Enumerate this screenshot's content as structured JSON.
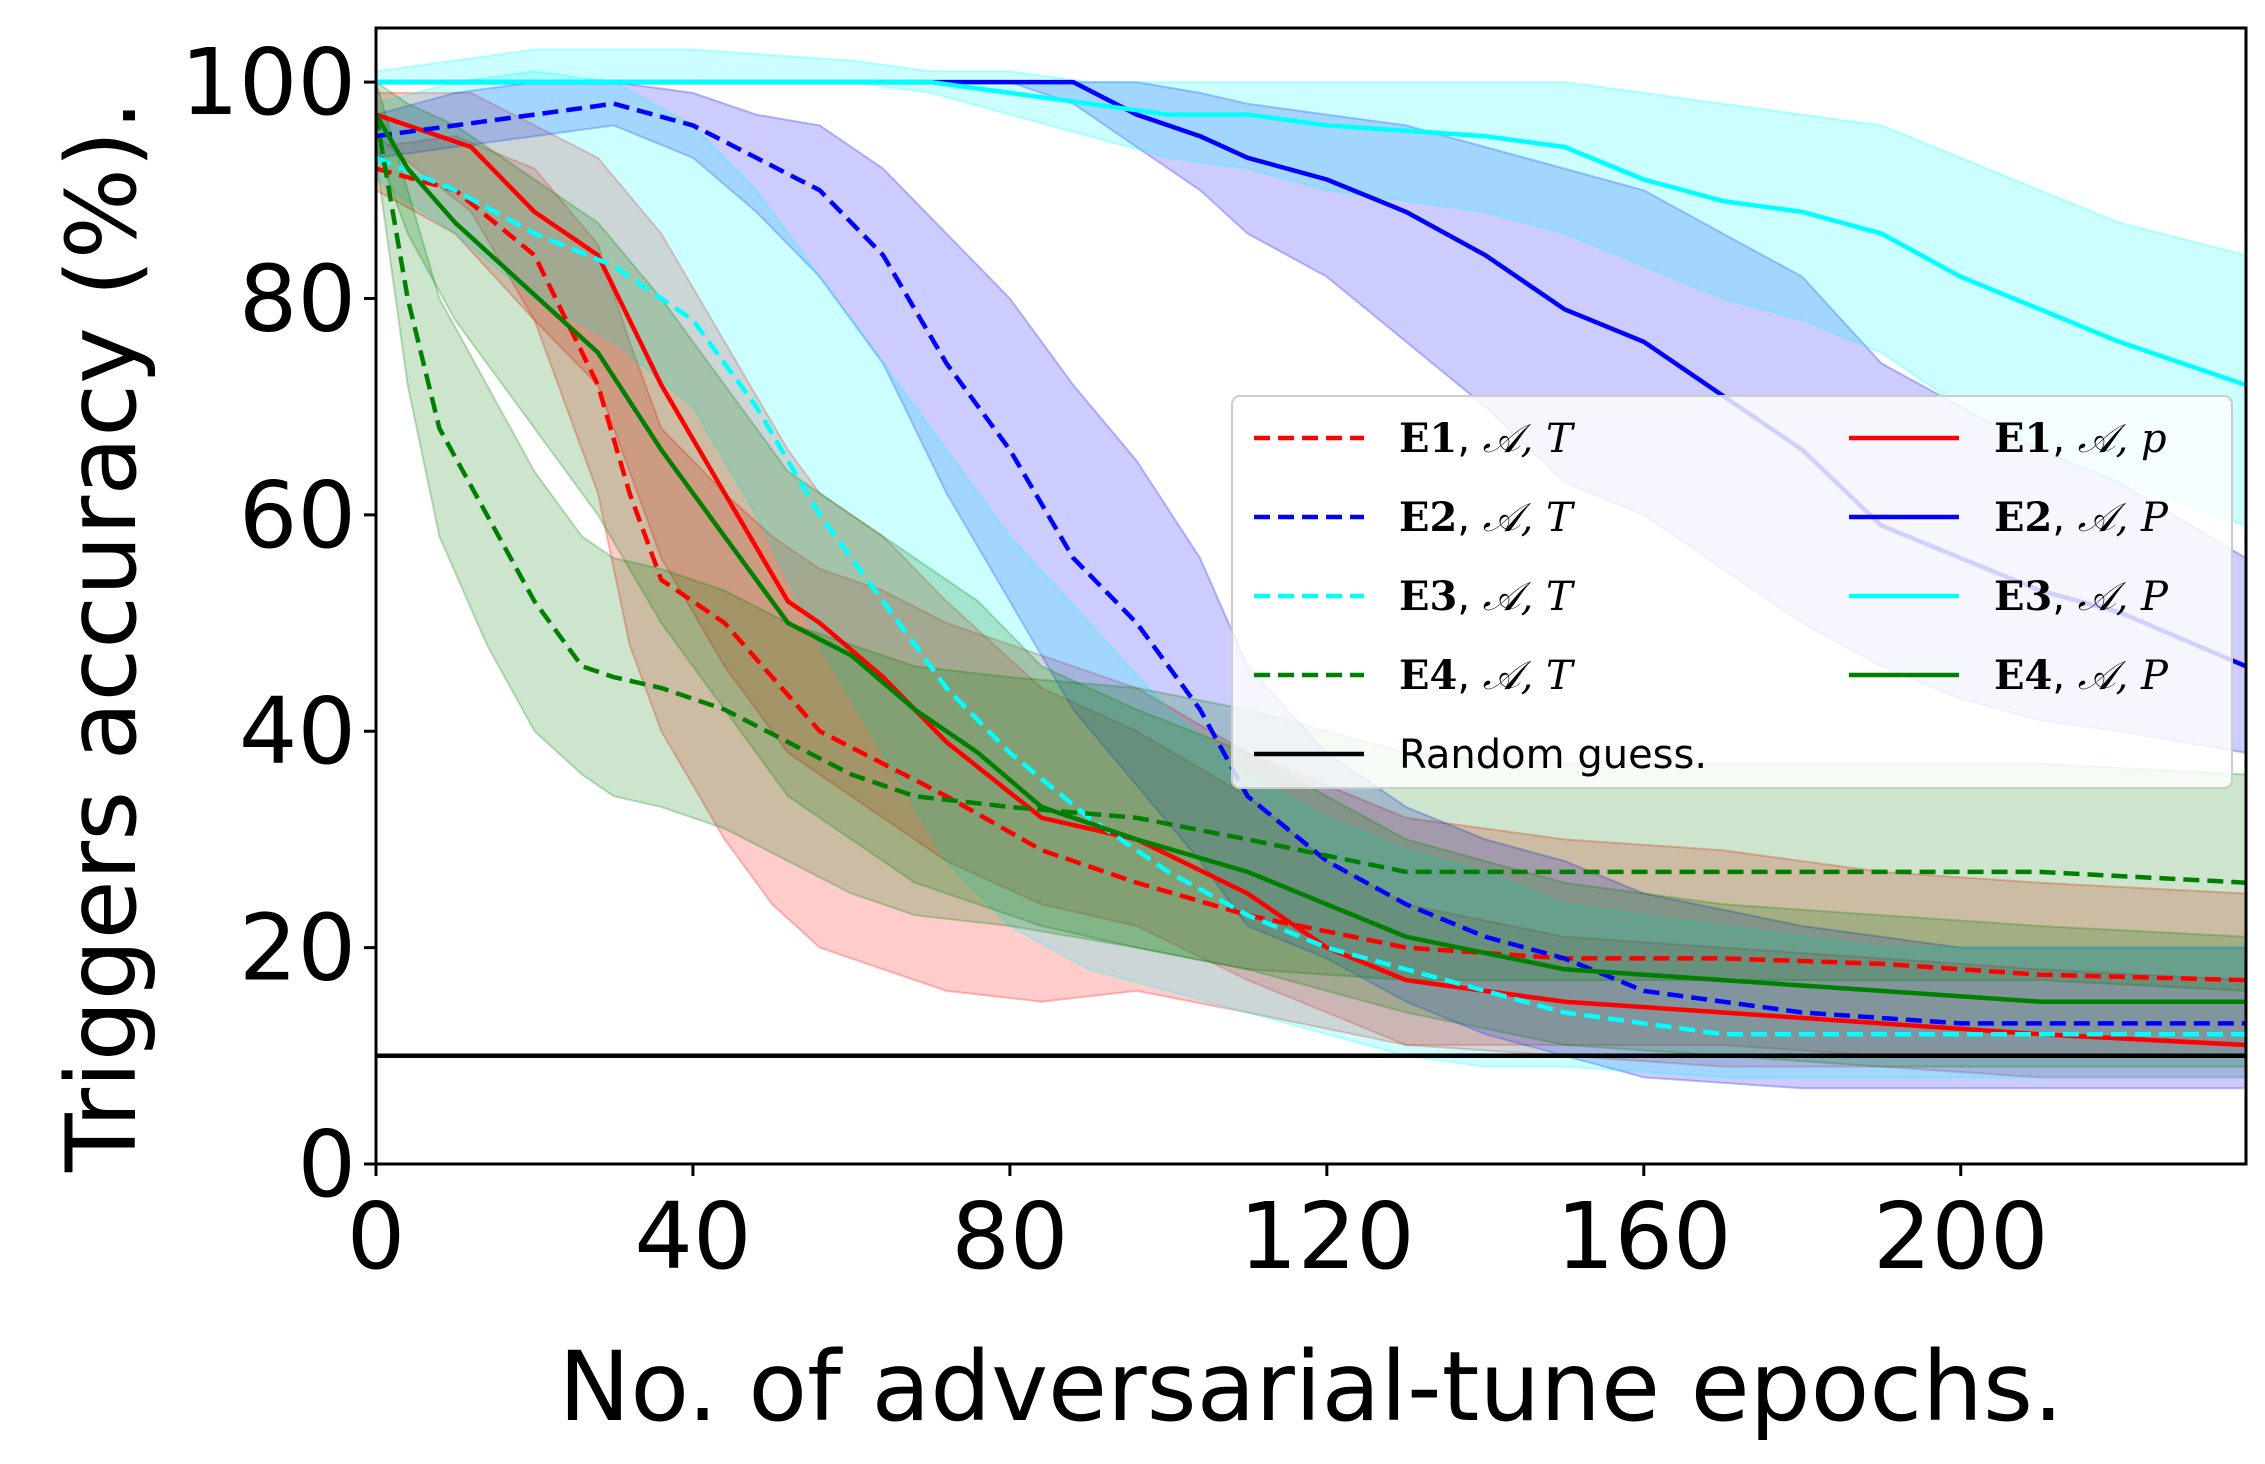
{
  "chart_data": {
    "type": "line",
    "title": "",
    "xlabel": "No. of adversarial-tune epochs.",
    "ylabel": "Triggers accuracy (%).",
    "xlim": [
      0,
      236
    ],
    "ylim": [
      0,
      105
    ],
    "xticks": [
      0,
      40,
      80,
      120,
      160,
      200
    ],
    "yticks": [
      0,
      20,
      40,
      60,
      80,
      100
    ],
    "legend_position": "center-right",
    "legend": [
      {
        "key": "E1T",
        "bold": "E1",
        "sep": ", ",
        "rest": "𝒜, T"
      },
      {
        "key": "E1P",
        "bold": "E1",
        "sep": ", ",
        "rest": "𝒜, p"
      },
      {
        "key": "E2T",
        "bold": "E2",
        "sep": ", ",
        "rest": "𝒜, T"
      },
      {
        "key": "E2P",
        "bold": "E2",
        "sep": ", ",
        "rest": "𝒜, P"
      },
      {
        "key": "E3T",
        "bold": "E3",
        "sep": ", ",
        "rest": "𝒜, T"
      },
      {
        "key": "E3P",
        "bold": "E3",
        "sep": ", ",
        "rest": "𝒜, P"
      },
      {
        "key": "E4T",
        "bold": "E4",
        "sep": ", ",
        "rest": "𝒜, T"
      },
      {
        "key": "E4P",
        "bold": "E4",
        "sep": ", ",
        "rest": "𝒜, P"
      },
      {
        "key": "RG",
        "text": "Random guess."
      }
    ],
    "baseline": {
      "name": "Random guess.",
      "value": 10,
      "color": "#000000"
    },
    "series": [
      {
        "key": "E1T",
        "color": "#ff0000",
        "dash": true,
        "x": [
          0,
          10,
          20,
          28,
          32,
          36,
          44,
          50,
          56,
          64,
          72,
          84,
          96,
          110,
          130,
          150,
          170,
          190,
          210,
          236
        ],
        "y": [
          92,
          90,
          84,
          72,
          62,
          54,
          50,
          45,
          40,
          37,
          34,
          29,
          26,
          23,
          20,
          19,
          19,
          18.5,
          17.5,
          17
        ],
        "low": [
          90,
          86,
          78,
          62,
          48,
          40,
          30,
          24,
          20,
          18,
          16,
          15,
          16,
          14,
          11,
          11,
          11,
          10,
          10,
          10
        ],
        "high": [
          94,
          95,
          92,
          85,
          76,
          68,
          62,
          58,
          55,
          53,
          50,
          47,
          44,
          38,
          32,
          30,
          29,
          27,
          26,
          25
        ]
      },
      {
        "key": "E1P",
        "color": "#ff0000",
        "dash": false,
        "x": [
          0,
          12,
          20,
          28,
          36,
          44,
          52,
          56,
          64,
          72,
          84,
          96,
          110,
          120,
          130,
          150,
          170,
          190,
          210,
          236
        ],
        "y": [
          97,
          94,
          88,
          84,
          72,
          62,
          52,
          50,
          45,
          39,
          32,
          30,
          25,
          20,
          17,
          15,
          14,
          13,
          12,
          11
        ],
        "low": [
          95,
          88,
          78,
          72,
          56,
          46,
          38,
          36,
          32,
          28,
          24,
          22,
          17,
          14,
          11,
          10,
          9,
          9,
          8,
          8
        ],
        "high": [
          99,
          99,
          96,
          93,
          86,
          76,
          66,
          62,
          58,
          52,
          44,
          40,
          34,
          28,
          24,
          21,
          20,
          19,
          18,
          17
        ]
      },
      {
        "key": "E2T",
        "color": "#0000ff",
        "dash": true,
        "x": [
          0,
          10,
          20,
          30,
          40,
          48,
          56,
          64,
          72,
          80,
          88,
          96,
          104,
          110,
          120,
          130,
          140,
          150,
          160,
          180,
          200,
          236
        ],
        "y": [
          95,
          96,
          97,
          98,
          96,
          93,
          90,
          84,
          74,
          66,
          56,
          50,
          42,
          34,
          28,
          24,
          21,
          19,
          16,
          14,
          13,
          13
        ],
        "low": [
          93,
          94,
          95,
          96,
          93,
          88,
          82,
          74,
          62,
          52,
          42,
          35,
          28,
          22,
          19,
          15,
          12,
          10,
          8,
          7,
          7,
          7
        ],
        "high": [
          97,
          99,
          100,
          100,
          99,
          97,
          96,
          92,
          86,
          80,
          72,
          65,
          56,
          46,
          38,
          33,
          30,
          28,
          25,
          22,
          20,
          20
        ]
      },
      {
        "key": "E2P",
        "color": "#0000ff",
        "dash": false,
        "x": [
          0,
          20,
          40,
          60,
          80,
          88,
          96,
          104,
          110,
          120,
          130,
          140,
          150,
          160,
          170,
          180,
          190,
          200,
          210,
          220,
          236
        ],
        "y": [
          100,
          100,
          100,
          100,
          100,
          100,
          97,
          95,
          93,
          91,
          88,
          84,
          79,
          76,
          71,
          66,
          59,
          56,
          53,
          51,
          46
        ],
        "low": [
          100,
          100,
          100,
          100,
          100,
          98,
          94,
          90,
          86,
          82,
          76,
          70,
          63,
          60,
          55,
          50,
          46,
          43,
          41,
          40,
          38
        ],
        "high": [
          100,
          100,
          100,
          100,
          100,
          100,
          100,
          99,
          98,
          97,
          96,
          94,
          92,
          90,
          86,
          82,
          74,
          70,
          66,
          63,
          56
        ]
      },
      {
        "key": "E3T",
        "color": "#00ffff",
        "dash": true,
        "x": [
          0,
          10,
          20,
          30,
          40,
          48,
          56,
          64,
          72,
          80,
          90,
          100,
          110,
          120,
          130,
          140,
          150,
          170,
          190,
          210,
          236
        ],
        "y": [
          93,
          90,
          86,
          83,
          78,
          70,
          60,
          52,
          44,
          38,
          32,
          27,
          23,
          20,
          18,
          16,
          14,
          12,
          12,
          12,
          12
        ],
        "low": [
          91,
          86,
          80,
          76,
          70,
          60,
          48,
          38,
          28,
          22,
          18,
          16,
          14,
          12,
          10,
          9,
          9,
          8,
          8,
          8,
          8
        ],
        "high": [
          98,
          100,
          101,
          100,
          96,
          90,
          82,
          74,
          66,
          58,
          50,
          42,
          36,
          32,
          29,
          27,
          24,
          22,
          20,
          20,
          20
        ]
      },
      {
        "key": "E3P",
        "color": "#00ffff",
        "dash": false,
        "x": [
          0,
          20,
          40,
          60,
          70,
          80,
          90,
          100,
          110,
          120,
          130,
          140,
          150,
          160,
          170,
          180,
          190,
          200,
          210,
          220,
          236
        ],
        "y": [
          100,
          100,
          100,
          100,
          100,
          99,
          98,
          97,
          97,
          96,
          95.5,
          95,
          94,
          91,
          89,
          88,
          86,
          82,
          79,
          76,
          72
        ],
        "low": [
          100,
          100,
          100,
          100,
          99,
          97,
          95,
          93,
          92,
          90,
          89,
          88,
          86,
          83,
          80,
          78,
          75,
          70,
          66,
          63,
          59
        ],
        "high": [
          101,
          103,
          103,
          102,
          101,
          101,
          100,
          100,
          100,
          100,
          100,
          100,
          100,
          99,
          98,
          97,
          96,
          93,
          90,
          87,
          84
        ]
      },
      {
        "key": "E4T",
        "color": "#007f00",
        "dash": true,
        "x": [
          0,
          4,
          8,
          14,
          20,
          26,
          30,
          36,
          44,
          52,
          60,
          68,
          80,
          96,
          110,
          130,
          150,
          170,
          190,
          210,
          236
        ],
        "y": [
          97,
          80,
          68,
          60,
          52,
          46,
          45,
          44,
          42,
          39,
          36,
          34,
          33,
          32,
          30,
          27,
          27,
          27,
          27,
          27,
          26
        ],
        "low": [
          93,
          72,
          58,
          48,
          40,
          36,
          34,
          33,
          31,
          28,
          25,
          23,
          22,
          20,
          18,
          17,
          17,
          17,
          17,
          17,
          16
        ],
        "high": [
          100,
          90,
          80,
          72,
          64,
          58,
          56,
          55,
          53,
          50,
          48,
          46,
          45,
          44,
          42,
          38,
          37,
          37,
          37,
          37,
          36
        ]
      },
      {
        "key": "E4P",
        "color": "#007f00",
        "dash": false,
        "x": [
          0,
          4,
          10,
          16,
          22,
          28,
          36,
          44,
          52,
          60,
          68,
          76,
          84,
          96,
          110,
          130,
          150,
          170,
          190,
          210,
          236
        ],
        "y": [
          97,
          92,
          87,
          83,
          79,
          75,
          66,
          58,
          50,
          47,
          42,
          38,
          33,
          30,
          27,
          21,
          18,
          17,
          16,
          15,
          15
        ],
        "low": [
          94,
          86,
          78,
          72,
          66,
          60,
          50,
          42,
          34,
          30,
          26,
          24,
          22,
          20,
          18,
          14,
          11,
          10,
          9,
          9,
          9
        ],
        "high": [
          100,
          98,
          96,
          93,
          90,
          87,
          80,
          72,
          64,
          60,
          56,
          52,
          46,
          42,
          38,
          30,
          26,
          24,
          23,
          22,
          21
        ]
      }
    ]
  }
}
